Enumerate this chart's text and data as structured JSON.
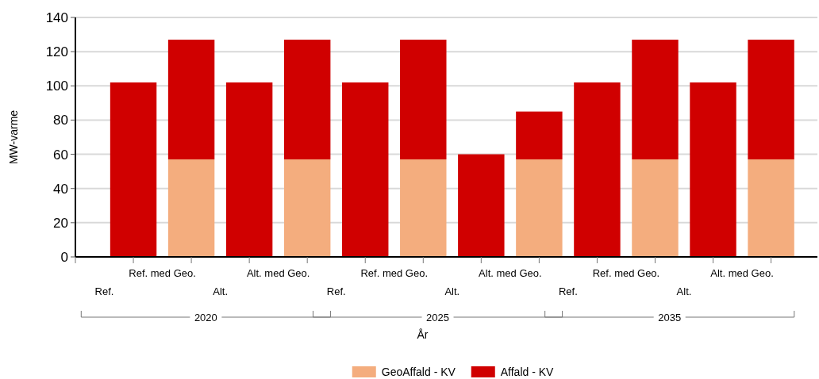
{
  "chart_data": {
    "type": "bar",
    "stacked": true,
    "xlabel": "År",
    "ylabel": "MW-varme",
    "categories": [
      "Ref.",
      "Ref. med Geo.",
      "Alt.",
      "Alt. med Geo.",
      "Ref.",
      "Ref. med Geo.",
      "Alt.",
      "Alt. med Geo.",
      "Ref.",
      "Ref. med Geo.",
      "Alt.",
      "Alt. med Geo."
    ],
    "series": [
      {
        "name": "GeoAffald - KV",
        "color": "#f4ad7e",
        "values": [
          0,
          57,
          0,
          57,
          0,
          57,
          0,
          57,
          0,
          57,
          0,
          57
        ]
      },
      {
        "name": "Affald - KV",
        "color": "#d00000",
        "values": [
          102,
          70,
          102,
          70,
          102,
          70,
          60,
          28,
          102,
          70,
          102,
          70
        ]
      }
    ],
    "annotations": [
      "2020",
      "2025",
      "2035"
    ],
    "ylim": [
      0,
      140
    ],
    "yticks": [
      0,
      20,
      40,
      60,
      80,
      100,
      120,
      140
    ],
    "grid": "y",
    "legend": "bottom"
  }
}
